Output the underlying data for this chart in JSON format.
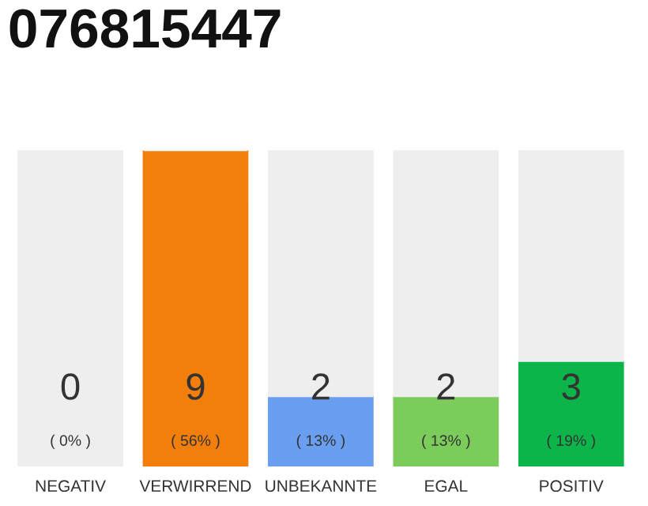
{
  "chart_data": {
    "type": "bar",
    "title": "076815447",
    "stacked": true,
    "categories": [
      "NEGATIV",
      "VERWIRREND",
      "UNBEKANNTE",
      "EGAL",
      "POSITIV"
    ],
    "series": [
      {
        "colors": [
          "#555555",
          "#f27e0c",
          "#6a9ef0",
          "#7ccc5c",
          "#0db44a"
        ],
        "values": [
          0,
          9,
          2,
          2,
          3
        ],
        "value_labels": [
          "0\n( 0% )",
          "9\n( 56% )",
          "2\n( 13% )",
          "2\n( 13% )",
          "3\n( 19% )"
        ]
      },
      {
        "color": "#eeeeee",
        "values": [
          9,
          0,
          7,
          7,
          6
        ]
      }
    ],
    "legend": false
  }
}
